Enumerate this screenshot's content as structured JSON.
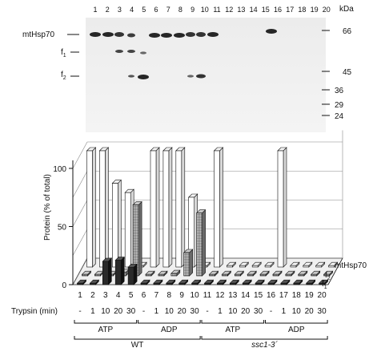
{
  "gel": {
    "lane_numbers": [
      "1",
      "2",
      "3",
      "4",
      "5",
      "6",
      "7",
      "8",
      "9",
      "10",
      "11",
      "12",
      "13",
      "14",
      "15",
      "16",
      "17",
      "18",
      "19",
      "20"
    ],
    "kda_label": "kDa",
    "mw_markers": [
      "66",
      "45",
      "36",
      "29",
      "24"
    ],
    "band_labels": {
      "mthsp70": "mtHsp70",
      "f1_main": "f",
      "f1_sub": "1",
      "f2_main": "f",
      "f2_sub": "2"
    }
  },
  "chart_data": {
    "type": "bar",
    "categories": [
      "1",
      "2",
      "3",
      "4",
      "5",
      "6",
      "7",
      "8",
      "9",
      "10",
      "11",
      "12",
      "13",
      "14",
      "15",
      "16",
      "17",
      "18",
      "19",
      "20"
    ],
    "trypsin_label": "Trypsin (min)",
    "trypsin_values": [
      "-",
      "1",
      "10",
      "20",
      "30",
      "-",
      "1",
      "10",
      "20",
      "30",
      "-",
      "1",
      "10",
      "20",
      "30",
      "-",
      "1",
      "10",
      "20",
      "30"
    ],
    "ylabel": "Protein (% of total)",
    "yticks": [
      "0",
      "50",
      "100"
    ],
    "ylim": [
      0,
      110
    ],
    "series": [
      {
        "name": "mtHsp70",
        "values": [
          100,
          100,
          72,
          64,
          0,
          100,
          100,
          100,
          60,
          0,
          100,
          0,
          0,
          0,
          0,
          100,
          0,
          0,
          0,
          0
        ]
      },
      {
        "name": "f2",
        "values": [
          0,
          0,
          0,
          3,
          61,
          0,
          0,
          2,
          20,
          54,
          0,
          0,
          0,
          0,
          0,
          0,
          0,
          0,
          0,
          0
        ]
      },
      {
        "name": "f1",
        "values": [
          0,
          0,
          20,
          21,
          15,
          0,
          0,
          0,
          0,
          0,
          0,
          0,
          0,
          0,
          0,
          0,
          0,
          0,
          0,
          0
        ]
      }
    ],
    "series_labels": {
      "mthsp70": "mtHsp70",
      "f2_main": "f",
      "f2_sub": "2",
      "f1_main": "f",
      "f1_sub": "1"
    },
    "groups": [
      "ATP",
      "ADP",
      "ATP",
      "ADP"
    ],
    "strains": [
      "WT",
      "ssc1-3´"
    ]
  }
}
